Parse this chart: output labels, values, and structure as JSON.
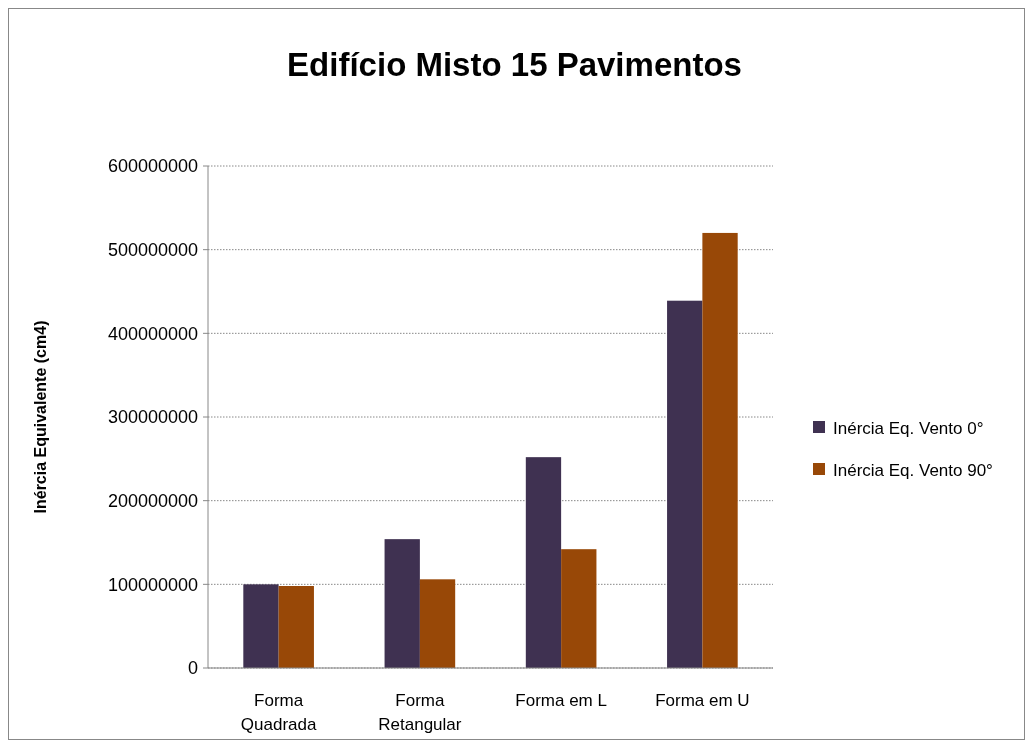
{
  "chart_data": {
    "type": "bar",
    "title": "Edifício Misto 15 Pavimentos",
    "ylabel": "Inércia Equivalente (cm4)",
    "categories": [
      "Forma Quadrada",
      "Forma Retangular",
      "Forma em L",
      "Forma em U"
    ],
    "series": [
      {
        "name": "Inércia Eq. Vento 0°",
        "color": "#3f3151",
        "values": [
          100000000,
          154000000,
          252000000,
          439000000
        ]
      },
      {
        "name": "Inércia Eq. Vento 90°",
        "color": "#984807",
        "values": [
          98000000,
          106000000,
          142000000,
          520000000
        ]
      }
    ],
    "ylim": [
      0,
      600000000
    ],
    "yticks": [
      0,
      100000000,
      200000000,
      300000000,
      400000000,
      500000000,
      600000000
    ],
    "grid": "y",
    "legend": "right"
  }
}
